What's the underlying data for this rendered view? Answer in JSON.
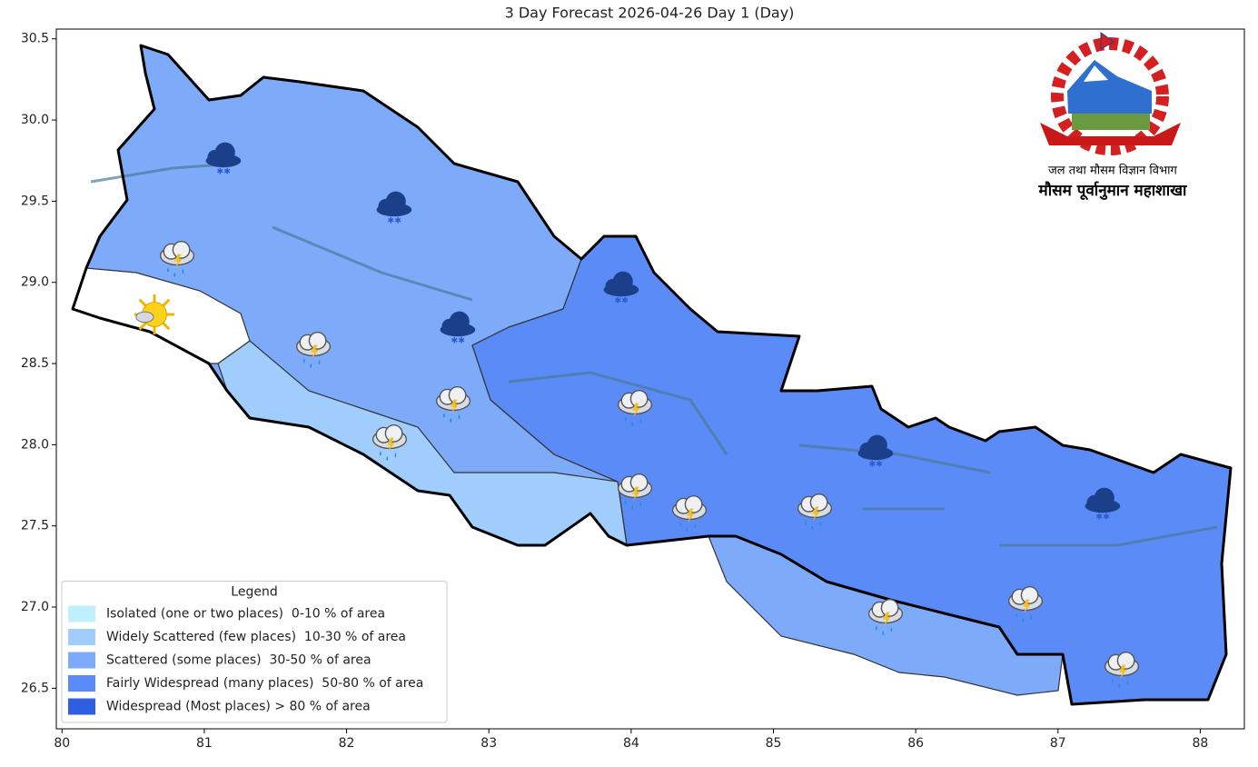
{
  "chart_data": {
    "type": "map",
    "title": "3 Day Forecast 2026-04-26 Day 1 (Day)",
    "xlim": [
      79.96,
      88.31
    ],
    "ylim": [
      26.25,
      30.56
    ],
    "xticks": [
      80,
      81,
      82,
      83,
      84,
      85,
      86,
      87,
      88
    ],
    "yticks": [
      26.5,
      {
        "value": 27,
        "label": "27.0"
      },
      27.5,
      {
        "value": 28,
        "label": "28.0"
      },
      28.5,
      {
        "value": 29,
        "label": "29.0"
      },
      29.5,
      {
        "value": 30,
        "label": "30.0"
      },
      30.5
    ],
    "legend": {
      "title": "Legend",
      "position": "lower left",
      "entries": [
        {
          "label": "Isolated (one or two places)  0-10 % of area",
          "color": "#bff0fc"
        },
        {
          "label": "Widely Scattered (few places)  10-30 % of area",
          "color": "#a0cdfc"
        },
        {
          "label": "Scattered (some places)  30-50 % of area",
          "color": "#7eaafa"
        },
        {
          "label": "Fairly Widespread (many places)  50-80 % of area",
          "color": "#5a8bf6"
        },
        {
          "label": "Widespread (Most places) > 80 % of area",
          "color": "#2f5fe0"
        }
      ]
    },
    "logo_text": [
      "जल तथा मौसम विज्ञान विभाग",
      "मौसम पूर्वानुमान महाशाखा"
    ]
  }
}
